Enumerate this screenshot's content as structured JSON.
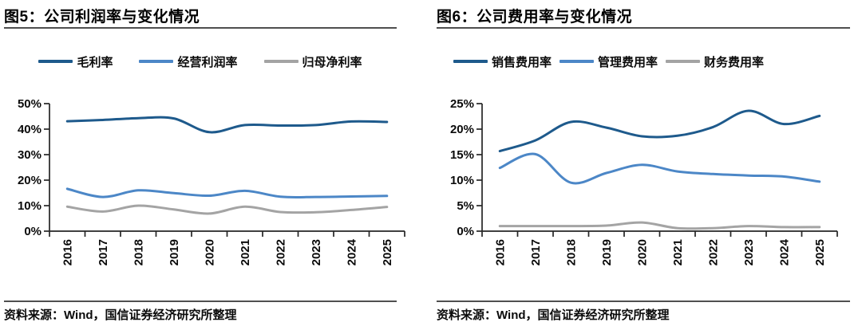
{
  "colors": {
    "series_dark_blue": "#1e5a8c",
    "series_mid_blue": "#4c87c7",
    "series_gray": "#a4a4a4",
    "axis": "#262626",
    "rule": "#4f4f4f",
    "text": "#000000"
  },
  "panels": [
    {
      "figure_title": "图5：公司利润率与变化情况",
      "source_note": "资料来源：Wind，国信证券经济研究所整理"
    },
    {
      "figure_title": "图6：公司费用率与变化情况",
      "source_note": "资料来源：Wind，国信证券经济研究所整理"
    }
  ],
  "chart_data": [
    {
      "type": "line",
      "title": "公司利润率与变化情况",
      "smooth": true,
      "grid": false,
      "legend_position": "top",
      "x_label_rotation": -90,
      "categories": [
        "2016",
        "2017",
        "2018",
        "2019",
        "2020",
        "2021",
        "2022",
        "2023",
        "2024",
        "2025"
      ],
      "series": [
        {
          "name": "毛利率",
          "color": "#1e5a8c",
          "values": [
            43.1,
            43.6,
            44.3,
            44.2,
            38.8,
            41.6,
            41.4,
            41.6,
            43.0,
            42.8
          ]
        },
        {
          "name": "经营利润率",
          "color": "#4c87c7",
          "values": [
            16.6,
            13.4,
            16.0,
            14.9,
            13.9,
            15.8,
            13.5,
            13.4,
            13.6,
            13.8
          ]
        },
        {
          "name": "归母净利率",
          "color": "#a4a4a4",
          "values": [
            9.6,
            7.7,
            10.0,
            8.5,
            6.9,
            9.6,
            7.5,
            7.4,
            8.3,
            9.5
          ]
        }
      ],
      "ylim": [
        0,
        50
      ],
      "ytick_step": 10,
      "ytick_suffix": "%"
    },
    {
      "type": "line",
      "title": "公司费用率与变化情况",
      "smooth": true,
      "grid": false,
      "legend_position": "top",
      "x_label_rotation": -90,
      "categories": [
        "2016",
        "2017",
        "2018",
        "2019",
        "2020",
        "2021",
        "2022",
        "2023",
        "2024",
        "2025"
      ],
      "series": [
        {
          "name": "销售费用率",
          "color": "#1e5a8c",
          "values": [
            15.7,
            17.8,
            21.4,
            20.3,
            18.6,
            18.7,
            20.4,
            23.6,
            21.0,
            22.6
          ]
        },
        {
          "name": "管理费用率",
          "color": "#4c87c7",
          "values": [
            12.4,
            15.1,
            9.5,
            11.4,
            13.0,
            11.7,
            11.2,
            10.9,
            10.7,
            9.7
          ]
        },
        {
          "name": "财务费用率",
          "color": "#a4a4a4",
          "values": [
            1.0,
            1.0,
            1.0,
            1.1,
            1.7,
            0.6,
            0.6,
            1.0,
            0.8,
            0.8
          ]
        }
      ],
      "ylim": [
        0,
        25
      ],
      "ytick_step": 5,
      "ytick_suffix": "%"
    }
  ]
}
